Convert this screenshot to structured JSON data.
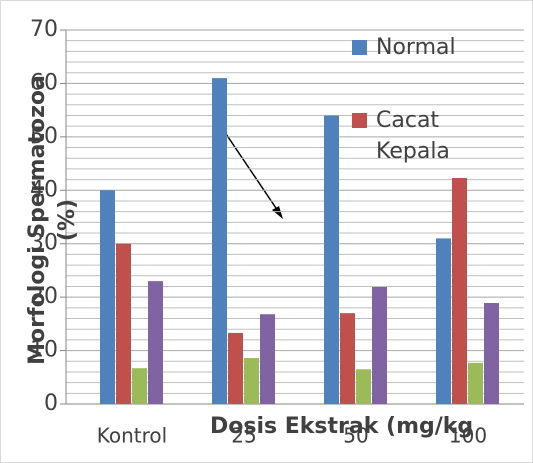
{
  "chart_data": {
    "type": "bar",
    "y_label": "Morfologi Spermatozoa (%)",
    "x_label": "Dosis Ekstrak (mg/kg",
    "categories": [
      "Kontrol",
      "25",
      "50",
      "100"
    ],
    "series": [
      {
        "name": "Normal",
        "color": "#4f81bd",
        "values": [
          40,
          61,
          54,
          31
        ]
      },
      {
        "name": "Cacat Kepala",
        "color": "#c0504d",
        "values": [
          30,
          13.3,
          17,
          42.3
        ]
      },
      {
        "color": "#9bbb59",
        "values": [
          6.7,
          8.6,
          6.5,
          7.7
        ]
      },
      {
        "color": "#8064a2",
        "values": [
          23,
          16.8,
          21.9,
          18.9
        ]
      }
    ],
    "ylim": [
      0,
      70
    ],
    "yticks": [
      0,
      10,
      20,
      30,
      40,
      50,
      60,
      70
    ],
    "grid": true
  }
}
